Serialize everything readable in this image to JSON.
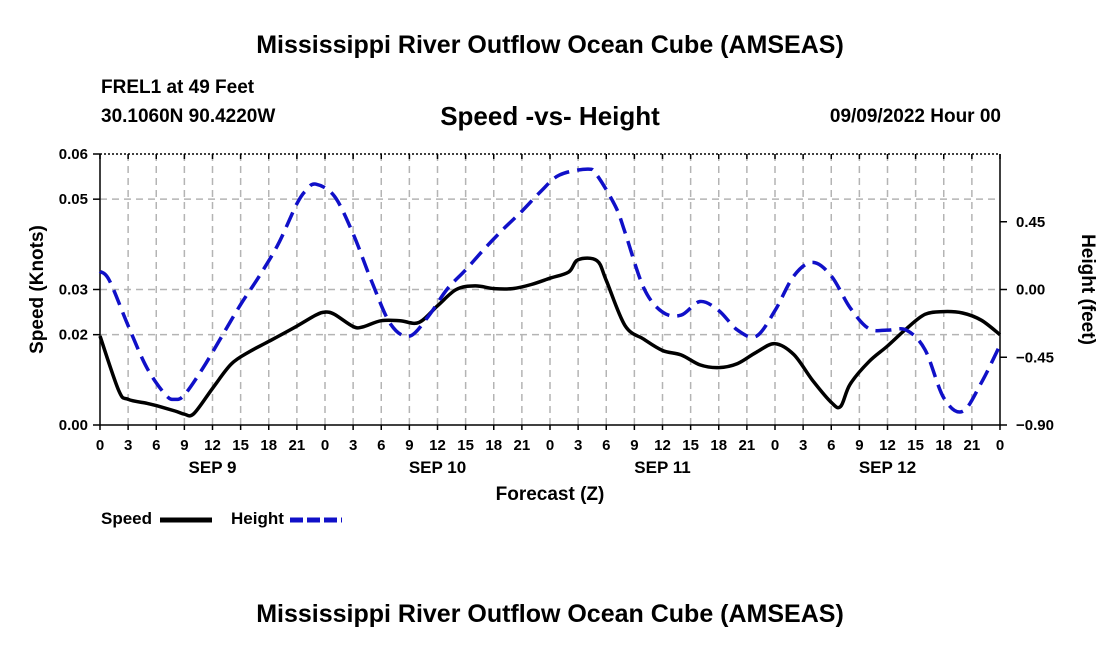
{
  "page": {
    "title_top": "Mississippi River Outflow Ocean Cube (AMSEAS)",
    "title_bottom": "Mississippi River Outflow Ocean Cube (AMSEAS)",
    "station": "FREL1 at 49 Feet",
    "coords": "30.1060N  90.4220W",
    "date_label": "09/09/2022 Hour 00"
  },
  "colors": {
    "speed": "#000000",
    "height": "#1010c8",
    "grid": "#b4b4b4"
  },
  "chart_data": {
    "type": "line",
    "title": "Speed -vs- Height",
    "xlabel": "Forecast (Z)",
    "ylabel": "Speed (Knots)",
    "y2label": "Height (feet)",
    "x_unit": "hours from 09/09/2022 00Z",
    "xlim": [
      0,
      96
    ],
    "ylim": [
      0.0,
      0.06
    ],
    "y2lim": [
      -0.9,
      0.9
    ],
    "x_ticks": [
      0,
      3,
      6,
      9,
      12,
      15,
      18,
      21,
      24,
      27,
      30,
      33,
      36,
      39,
      42,
      45,
      48,
      51,
      54,
      57,
      60,
      63,
      66,
      69,
      72,
      75,
      78,
      81,
      84,
      87,
      90,
      93,
      96
    ],
    "x_tick_labels": [
      "0",
      "3",
      "6",
      "9",
      "12",
      "15",
      "18",
      "21",
      "0",
      "3",
      "6",
      "9",
      "12",
      "15",
      "18",
      "21",
      "0",
      "3",
      "6",
      "9",
      "12",
      "15",
      "18",
      "21",
      "0",
      "3",
      "6",
      "9",
      "12",
      "15",
      "18",
      "21",
      "0"
    ],
    "day_labels": [
      {
        "x": 12,
        "label": "SEP 9"
      },
      {
        "x": 36,
        "label": "SEP 10"
      },
      {
        "x": 60,
        "label": "SEP 11"
      },
      {
        "x": 84,
        "label": "SEP 12"
      }
    ],
    "y_ticks": [
      0.0,
      0.02,
      0.03,
      0.05,
      0.06
    ],
    "y_tick_labels": [
      "0.00",
      "0.02",
      "0.03",
      "0.05",
      "0.06"
    ],
    "y2_ticks": [
      -0.9,
      -0.45,
      0.0,
      0.45
    ],
    "y2_tick_labels": [
      "−0.90",
      "−0.45",
      "0.00",
      "0.45"
    ],
    "series": [
      {
        "name": "Speed",
        "axis": "left",
        "style": "solid",
        "x": [
          0,
          2,
          3,
          5,
          6,
          8,
          9,
          10,
          12,
          14,
          16,
          18,
          21,
          23,
          24,
          25,
          27,
          28,
          30,
          32,
          34,
          36,
          38,
          40,
          42,
          44,
          46,
          48,
          50,
          51,
          53,
          54,
          56,
          58,
          60,
          62,
          64,
          66,
          68,
          70,
          72,
          74,
          76,
          78,
          79,
          80,
          82,
          84,
          86,
          88,
          90,
          92,
          94,
          96
        ],
        "values": [
          0.0197,
          0.0076,
          0.0057,
          0.0048,
          0.0043,
          0.0031,
          0.0024,
          0.0025,
          0.0081,
          0.0135,
          0.0163,
          0.0185,
          0.0219,
          0.0243,
          0.025,
          0.0245,
          0.0218,
          0.0217,
          0.0231,
          0.0231,
          0.0227,
          0.0264,
          0.03,
          0.0308,
          0.0302,
          0.0302,
          0.0311,
          0.0325,
          0.0339,
          0.0366,
          0.0364,
          0.032,
          0.022,
          0.019,
          0.0165,
          0.0155,
          0.0133,
          0.0127,
          0.0136,
          0.0161,
          0.018,
          0.0156,
          0.0099,
          0.005,
          0.0041,
          0.009,
          0.014,
          0.0175,
          0.0213,
          0.0245,
          0.0251,
          0.0248,
          0.0232,
          0.02
        ]
      },
      {
        "name": "Height",
        "axis": "right",
        "style": "dashed",
        "x": [
          0,
          1,
          3,
          5,
          7,
          8,
          9,
          11,
          13,
          15,
          17,
          19,
          21,
          22,
          23,
          25,
          27,
          29,
          31,
          33,
          35,
          37,
          39,
          41,
          43,
          45,
          47,
          49,
          52,
          53,
          55,
          56,
          58,
          60,
          62,
          64,
          66,
          68,
          70,
          72,
          74,
          76,
          78,
          80,
          82,
          84,
          86,
          88,
          90,
          92,
          94,
          96
        ],
        "values": [
          0.12,
          0.06,
          -0.24,
          -0.52,
          -0.7,
          -0.73,
          -0.7,
          -0.52,
          -0.31,
          -0.1,
          0.09,
          0.3,
          0.57,
          0.66,
          0.7,
          0.62,
          0.37,
          0.05,
          -0.23,
          -0.31,
          -0.18,
          -0.0,
          0.13,
          0.27,
          0.4,
          0.52,
          0.65,
          0.76,
          0.8,
          0.76,
          0.55,
          0.38,
          0.01,
          -0.15,
          -0.17,
          -0.08,
          -0.14,
          -0.27,
          -0.31,
          -0.14,
          0.09,
          0.18,
          0.09,
          -0.12,
          -0.26,
          -0.27,
          -0.27,
          -0.4,
          -0.72,
          -0.81,
          -0.62,
          -0.37
        ]
      }
    ],
    "legend": [
      {
        "name": "Speed",
        "style": "solid"
      },
      {
        "name": "Height",
        "style": "dashed"
      }
    ]
  }
}
